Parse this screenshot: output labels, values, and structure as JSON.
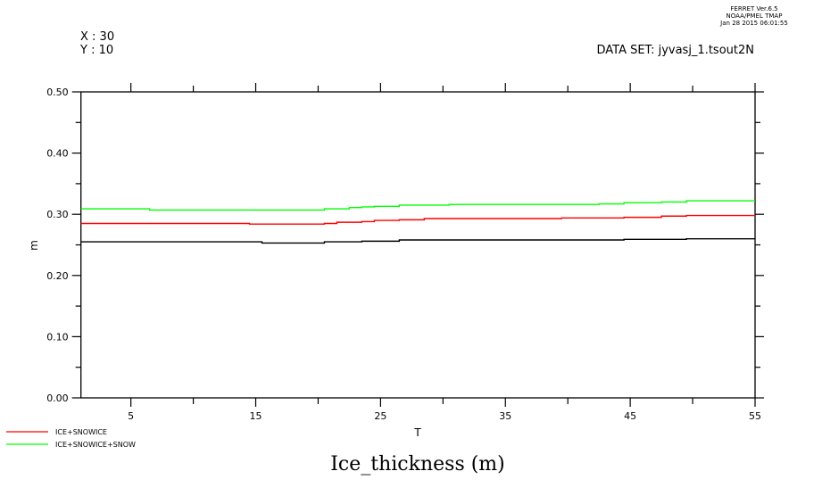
{
  "header": {
    "ferret_version": "FERRET  Ver.6.5",
    "ferret_org": "NOAA/PMEL TMAP",
    "ferret_date": "Jan 28 2015 06:01:55",
    "x_label": "X : 30",
    "y_label": "Y : 10",
    "dataset": "DATA SET: jyvasj_1.tsout2N"
  },
  "chart_data": {
    "type": "line",
    "title": "Ice_thickness (m)",
    "xlabel": "T",
    "ylabel": "m",
    "xlim": [
      1,
      55
    ],
    "ylim": [
      0,
      0.5
    ],
    "xticks": [
      5,
      15,
      25,
      35,
      45,
      55
    ],
    "yticks": [
      "0.00",
      "0.10",
      "0.20",
      "0.30",
      "0.40",
      "0.50"
    ],
    "grid": false,
    "legend_placement": "bottom-left",
    "step": true,
    "series": [
      {
        "color": "#000000",
        "points": [
          [
            1,
            0.255
          ],
          [
            15.5,
            0.253
          ],
          [
            20.5,
            0.255
          ],
          [
            23.5,
            0.256
          ],
          [
            26.5,
            0.258
          ],
          [
            44.5,
            0.259
          ],
          [
            49.5,
            0.26
          ],
          [
            55,
            0.26
          ]
        ]
      },
      {
        "name": "ICE+SNOWICE",
        "color": "#ff0000",
        "points": [
          [
            1,
            0.285
          ],
          [
            14.5,
            0.284
          ],
          [
            20.5,
            0.285
          ],
          [
            21.5,
            0.287
          ],
          [
            23.5,
            0.288
          ],
          [
            24.5,
            0.29
          ],
          [
            26.5,
            0.291
          ],
          [
            28.5,
            0.293
          ],
          [
            39.5,
            0.294
          ],
          [
            44.5,
            0.295
          ],
          [
            47.5,
            0.297
          ],
          [
            49.5,
            0.298
          ],
          [
            55,
            0.298
          ]
        ]
      },
      {
        "name": "ICE+SNOWICE+SNOW",
        "color": "#00ff00",
        "points": [
          [
            1,
            0.309
          ],
          [
            6.5,
            0.307
          ],
          [
            20.5,
            0.309
          ],
          [
            22.5,
            0.311
          ],
          [
            23.5,
            0.312
          ],
          [
            24.5,
            0.313
          ],
          [
            26.5,
            0.315
          ],
          [
            30.5,
            0.316
          ],
          [
            42.5,
            0.317
          ],
          [
            44.5,
            0.319
          ],
          [
            47.5,
            0.32
          ],
          [
            49.5,
            0.322
          ],
          [
            55,
            0.322
          ]
        ]
      }
    ]
  }
}
